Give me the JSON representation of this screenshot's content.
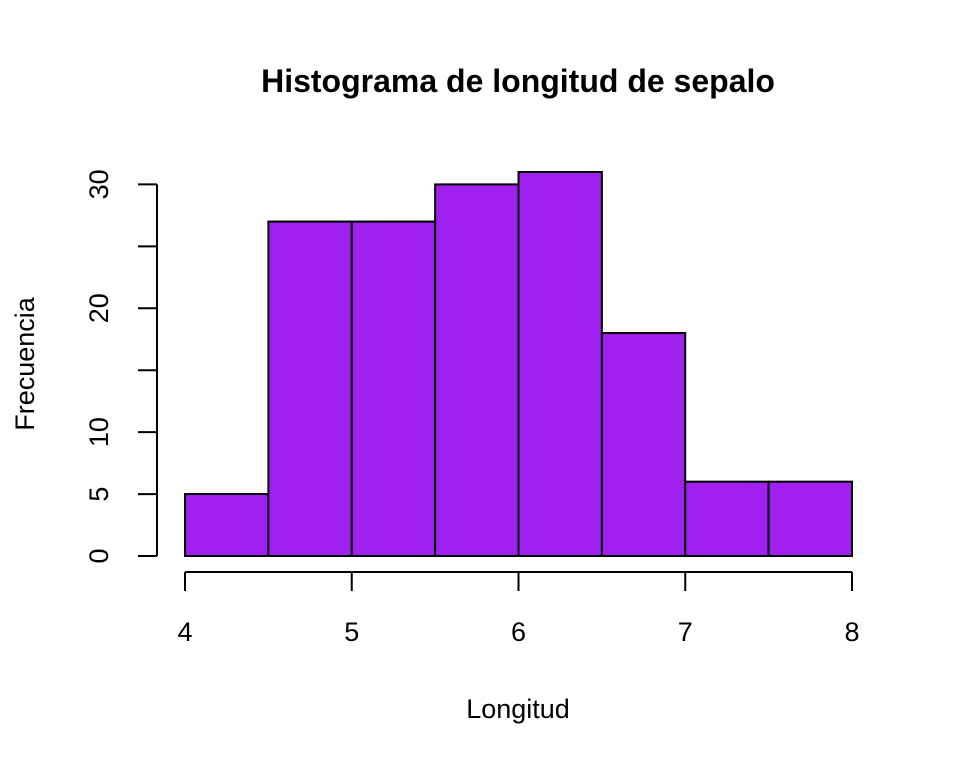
{
  "chart_data": {
    "type": "bar",
    "subtype": "histogram",
    "title": "Histograma de longitud de sepalo",
    "xlabel": "Longitud",
    "ylabel": "Frecuencia",
    "bins": [
      {
        "from": 4.0,
        "to": 4.5,
        "count": 5
      },
      {
        "from": 4.5,
        "to": 5.0,
        "count": 27
      },
      {
        "from": 5.0,
        "to": 5.5,
        "count": 27
      },
      {
        "from": 5.5,
        "to": 6.0,
        "count": 30
      },
      {
        "from": 6.0,
        "to": 6.5,
        "count": 31
      },
      {
        "from": 6.5,
        "to": 7.0,
        "count": 18
      },
      {
        "from": 7.0,
        "to": 7.5,
        "count": 6
      },
      {
        "from": 7.5,
        "to": 8.0,
        "count": 6
      }
    ],
    "xlim": [
      4,
      8
    ],
    "ylim": [
      0,
      31
    ],
    "x_ticks": [
      4,
      5,
      6,
      7,
      8
    ],
    "x_tick_labels": [
      "4",
      "5",
      "6",
      "7",
      "8"
    ],
    "y_ticks": [
      0,
      5,
      10,
      15,
      20,
      25,
      30
    ],
    "y_tick_labels": [
      "0",
      "5",
      "10",
      "",
      "20",
      "",
      "30"
    ],
    "bar_color": "#A020F0",
    "grid": false,
    "legend": "none"
  }
}
